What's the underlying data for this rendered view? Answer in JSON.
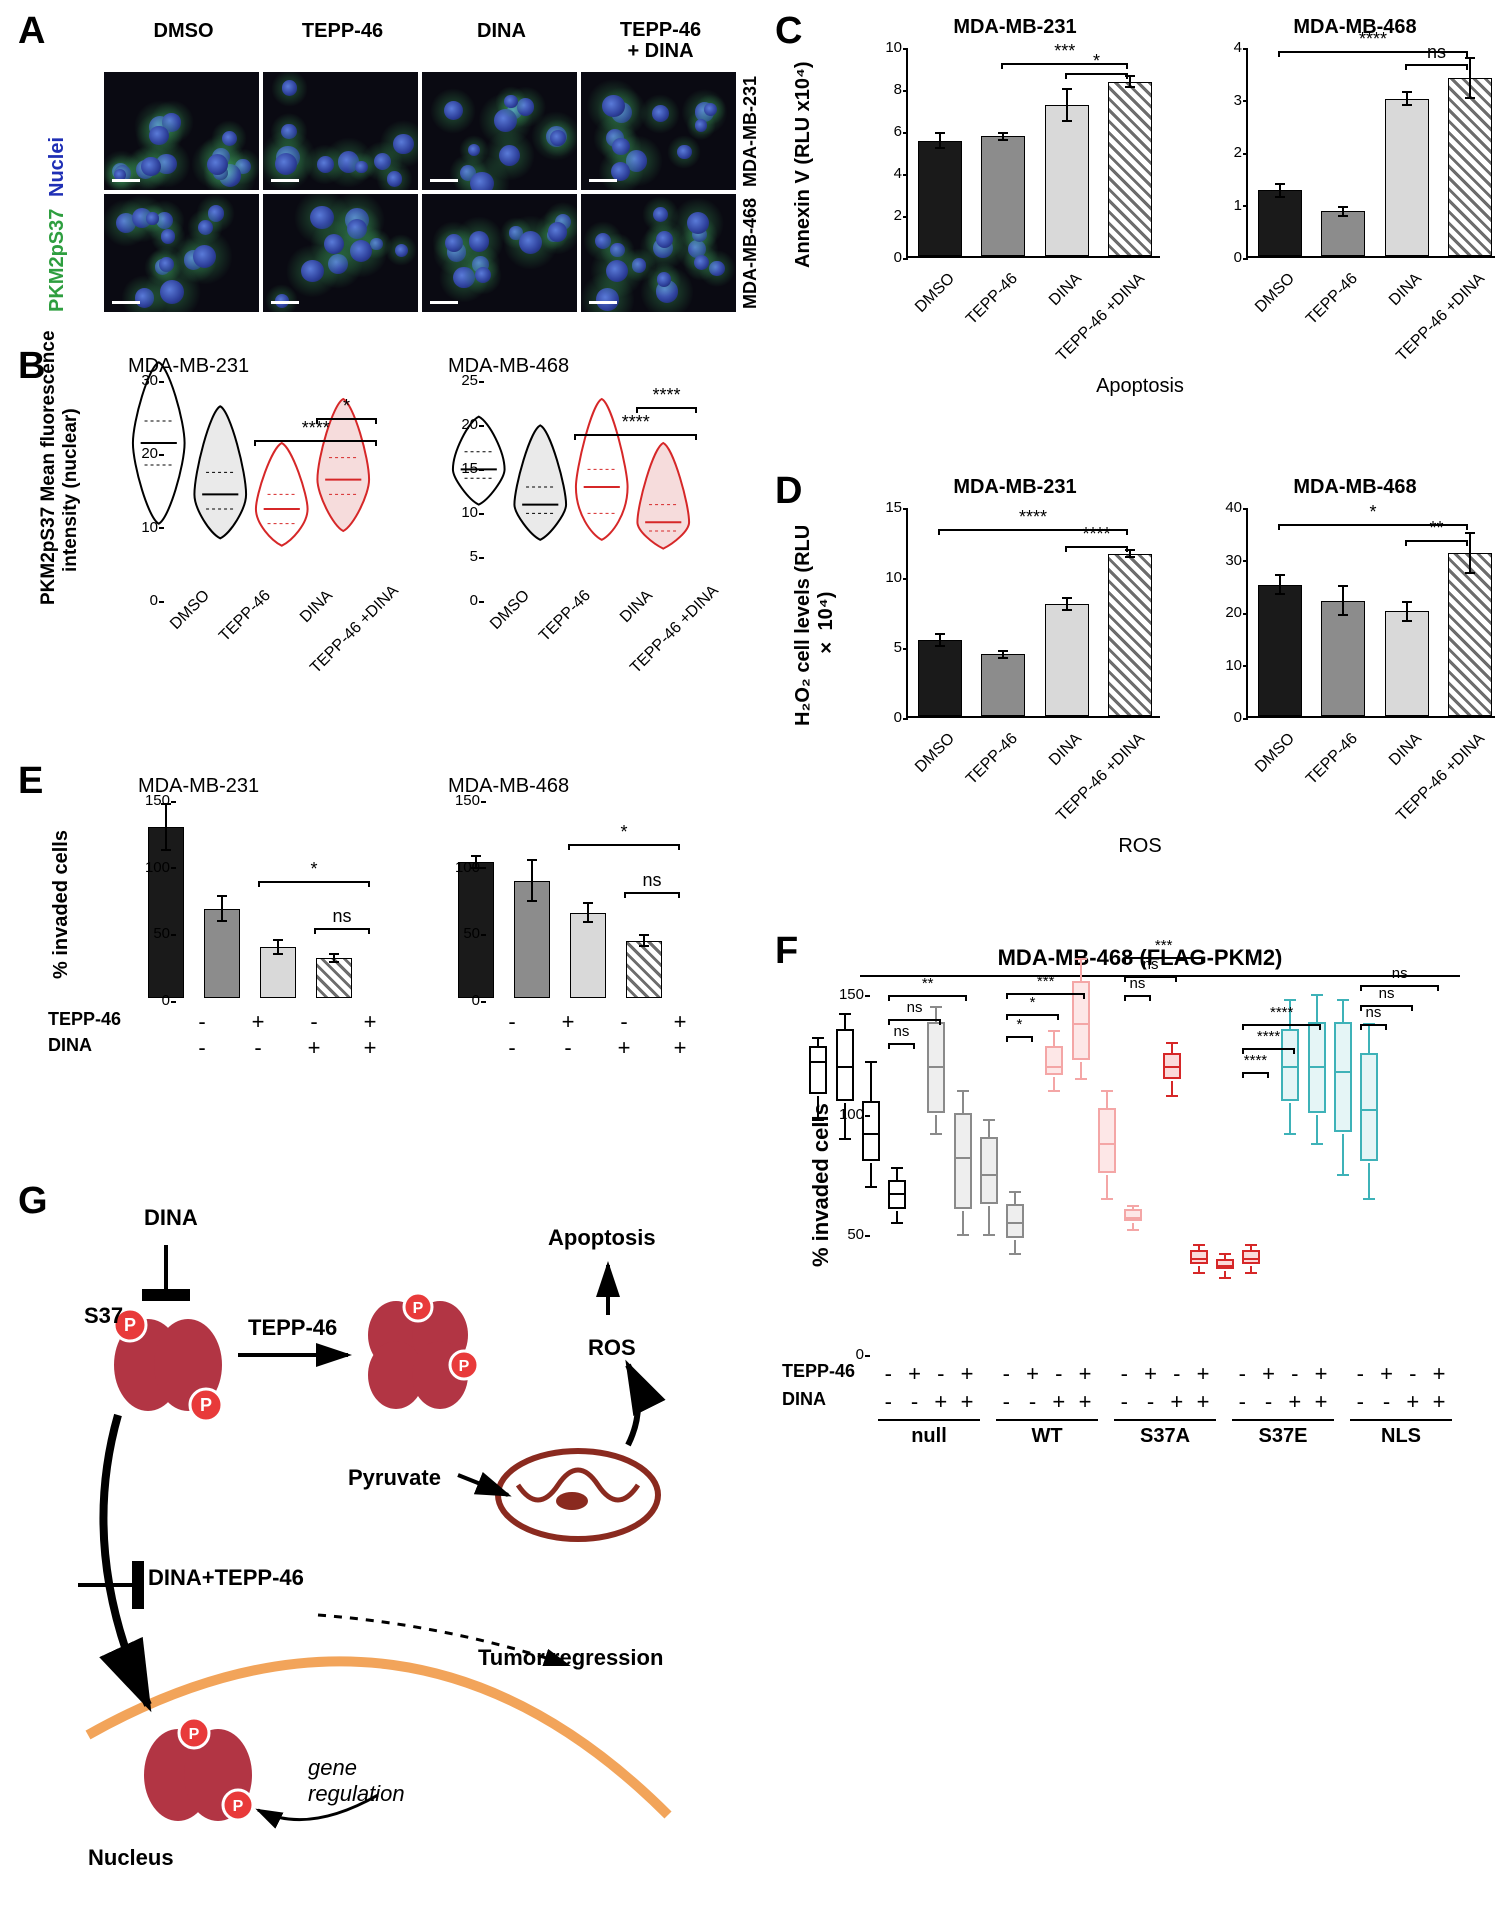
{
  "palette": {
    "bar_dmso": "#1a1a1a",
    "bar_tepp": "#8c8c8c",
    "bar_dina": "#d9d9d9",
    "bar_combo_fill": "#ffffff",
    "bar_combo_hatch": "#6d6d6d",
    "violin_ctrl": "#000000",
    "violin_ctrl_fill": "#eaeaea",
    "violin_trt": "#d62728",
    "box_null": "#000000",
    "box_wt": "#8a8a8a",
    "box_s37a": "#f4a6a6",
    "box_s37e": "#d62728",
    "box_nls": "#3eb2b8"
  },
  "panelA": {
    "col_headers": [
      "DMSO",
      "TEPP-46",
      "DINA",
      "TEPP-46\n+ DINA"
    ],
    "row_headers": [
      "MDA-MB-231",
      "MDA-MB-468"
    ],
    "legend": [
      "PKM2pS37",
      "Nuclei"
    ],
    "legend_colors": [
      "#2e9e3f",
      "#1f2fb5"
    ]
  },
  "panelB": {
    "ylabel": "PKM2pS37 Mean fluorescence\nintensity (nuclear)",
    "charts": [
      {
        "title": "MDA-MB-231",
        "ylim": [
          0,
          30
        ],
        "ytick_step": 10,
        "groups": [
          "DMSO",
          "TEPP-46",
          "DINA",
          "TEPP-46\n+DINA"
        ],
        "violins": [
          {
            "median": 18,
            "q1": 15,
            "q3": 21,
            "min": 7,
            "max": 29,
            "color": "violin_ctrl"
          },
          {
            "median": 11,
            "q1": 9,
            "q3": 14,
            "min": 5,
            "max": 23,
            "color": "violin_ctrl"
          },
          {
            "median": 9,
            "q1": 7,
            "q3": 11,
            "min": 4,
            "max": 18,
            "color": "violin_trt"
          },
          {
            "median": 13,
            "q1": 11,
            "q3": 16,
            "min": 6,
            "max": 24,
            "color": "violin_trt"
          }
        ],
        "sig": [
          {
            "from": 2,
            "to": 3,
            "label": "*",
            "y": 25
          },
          {
            "from": 1,
            "to": 3,
            "label": "****",
            "y": 22
          }
        ]
      },
      {
        "title": "MDA-MB-468",
        "ylim": [
          0,
          25
        ],
        "ytick_step": 5,
        "groups": [
          "DMSO",
          "TEPP-46",
          "DINA",
          "TEPP-46\n+DINA"
        ],
        "violins": [
          {
            "median": 12,
            "q1": 11,
            "q3": 14,
            "min": 8,
            "max": 18,
            "color": "violin_ctrl"
          },
          {
            "median": 8,
            "q1": 7,
            "q3": 10,
            "min": 4,
            "max": 17,
            "color": "violin_ctrl"
          },
          {
            "median": 10,
            "q1": 7,
            "q3": 12,
            "min": 4,
            "max": 20,
            "color": "violin_trt"
          },
          {
            "median": 6,
            "q1": 5,
            "q3": 8,
            "min": 3,
            "max": 15,
            "color": "violin_trt"
          }
        ],
        "sig": [
          {
            "from": 2,
            "to": 3,
            "label": "****",
            "y": 22
          },
          {
            "from": 1,
            "to": 3,
            "label": "****",
            "y": 19
          }
        ]
      }
    ]
  },
  "panelC": {
    "ylabel": "Annexin V (RLU x10⁴)",
    "footer": "Apoptosis",
    "charts": [
      {
        "title": "MDA-MB-231",
        "ylim": [
          0,
          10
        ],
        "ytick_step": 2,
        "groups": [
          "DMSO",
          "TEPP-46",
          "DINA",
          "TEPP-46\n+DINA"
        ],
        "bars": [
          {
            "v": 5.5,
            "e": 0.4
          },
          {
            "v": 5.7,
            "e": 0.2
          },
          {
            "v": 7.2,
            "e": 0.8
          },
          {
            "v": 8.3,
            "e": 0.3
          }
        ],
        "sig": [
          {
            "from": 1,
            "to": 3,
            "label": "***",
            "y": 9.3
          },
          {
            "from": 2,
            "to": 3,
            "label": "*",
            "y": 8.8
          }
        ]
      },
      {
        "title": "MDA-MB-468",
        "ylim": [
          0,
          4
        ],
        "ytick_step": 1,
        "groups": [
          "DMSO",
          "TEPP-46",
          "DINA",
          "TEPP-46\n+DINA"
        ],
        "bars": [
          {
            "v": 1.25,
            "e": 0.15
          },
          {
            "v": 0.85,
            "e": 0.1
          },
          {
            "v": 3.0,
            "e": 0.15
          },
          {
            "v": 3.4,
            "e": 0.4
          }
        ],
        "sig": [
          {
            "from": 0,
            "to": 3,
            "label": "****",
            "y": 3.95
          },
          {
            "from": 2,
            "to": 3,
            "label": "ns",
            "y": 3.7
          }
        ]
      }
    ]
  },
  "panelD": {
    "ylabel": "H₂O₂ cell levels  (RLU × 10⁴)",
    "footer": "ROS",
    "charts": [
      {
        "title": "MDA-MB-231",
        "ylim": [
          0,
          15
        ],
        "ytick_step": 5,
        "groups": [
          "DMSO",
          "TEPP-46",
          "DINA",
          "TEPP-46\n+DINA"
        ],
        "bars": [
          {
            "v": 5.4,
            "e": 0.5
          },
          {
            "v": 4.4,
            "e": 0.3
          },
          {
            "v": 8.0,
            "e": 0.5
          },
          {
            "v": 11.6,
            "e": 0.3
          }
        ],
        "sig": [
          {
            "from": 0,
            "to": 3,
            "label": "****",
            "y": 13.5
          },
          {
            "from": 2,
            "to": 3,
            "label": "****",
            "y": 12.3
          }
        ]
      },
      {
        "title": "MDA-MB-468",
        "ylim": [
          0,
          40
        ],
        "ytick_step": 10,
        "groups": [
          "DMSO",
          "TEPP-46",
          "DINA",
          "TEPP-46\n+DINA"
        ],
        "bars": [
          {
            "v": 25,
            "e": 2
          },
          {
            "v": 22,
            "e": 3
          },
          {
            "v": 20,
            "e": 2
          },
          {
            "v": 31,
            "e": 4
          }
        ],
        "sig": [
          {
            "from": 0,
            "to": 3,
            "label": "*",
            "y": 37
          },
          {
            "from": 2,
            "to": 3,
            "label": "**",
            "y": 34
          }
        ]
      }
    ]
  },
  "panelE": {
    "ylabel": "% invaded cells",
    "charts": [
      {
        "title": "MDA-MB-231",
        "ylim": [
          0,
          150
        ],
        "ytick_step": 50,
        "bars": [
          {
            "v": 128,
            "e": 18
          },
          {
            "v": 67,
            "e": 10
          },
          {
            "v": 38,
            "e": 6
          },
          {
            "v": 30,
            "e": 4
          }
        ],
        "sig": [
          {
            "from": 1,
            "to": 3,
            "label": "*",
            "y": 90
          },
          {
            "from": 2,
            "to": 3,
            "label": "ns",
            "y": 55
          }
        ]
      },
      {
        "title": "MDA-MB-468",
        "ylim": [
          0,
          150
        ],
        "ytick_step": 50,
        "bars": [
          {
            "v": 102,
            "e": 5
          },
          {
            "v": 88,
            "e": 16
          },
          {
            "v": 64,
            "e": 8
          },
          {
            "v": 43,
            "e": 5
          }
        ],
        "sig": [
          {
            "from": 1,
            "to": 3,
            "label": "*",
            "y": 118
          },
          {
            "from": 2,
            "to": 3,
            "label": "ns",
            "y": 82
          }
        ]
      }
    ],
    "trt_rows": [
      "TEPP-46",
      "DINA"
    ],
    "trt_matrix": [
      [
        "-",
        "+",
        "-",
        "+"
      ],
      [
        "-",
        "-",
        "+",
        "+"
      ]
    ]
  },
  "panelF": {
    "title": "MDA-MB-468 (FLAG-PKM2)",
    "ylabel": "% invaded cells",
    "ylim": [
      0,
      150
    ],
    "ytick_step": 50,
    "constructs": [
      "null",
      "WT",
      "S37A",
      "S37E",
      "NLS"
    ],
    "construct_colors": [
      "box_null",
      "box_wt",
      "box_s37a",
      "box_s37e",
      "box_nls"
    ],
    "trt_rows": [
      "TEPP-46",
      "DINA"
    ],
    "trt_matrix": [
      [
        "-",
        "+",
        "-",
        "+"
      ],
      [
        "-",
        "-",
        "+",
        "+"
      ]
    ],
    "boxes": [
      [
        {
          "min": 78,
          "q1": 88,
          "med": 102,
          "q3": 108,
          "max": 112
        },
        {
          "min": 70,
          "q1": 85,
          "med": 100,
          "q3": 115,
          "max": 122
        },
        {
          "min": 50,
          "q1": 60,
          "med": 72,
          "q3": 85,
          "max": 102
        },
        {
          "min": 35,
          "q1": 40,
          "med": 47,
          "q3": 52,
          "max": 58
        }
      ],
      [
        {
          "min": 72,
          "q1": 80,
          "med": 100,
          "q3": 118,
          "max": 125
        },
        {
          "min": 30,
          "q1": 40,
          "med": 62,
          "q3": 80,
          "max": 90
        },
        {
          "min": 30,
          "q1": 42,
          "med": 55,
          "q3": 70,
          "max": 78
        },
        {
          "min": 22,
          "q1": 28,
          "med": 35,
          "q3": 42,
          "max": 48
        }
      ],
      [
        {
          "min": 90,
          "q1": 96,
          "med": 100,
          "q3": 108,
          "max": 115
        },
        {
          "min": 95,
          "q1": 102,
          "med": 118,
          "q3": 135,
          "max": 145
        },
        {
          "min": 45,
          "q1": 55,
          "med": 68,
          "q3": 82,
          "max": 90
        },
        {
          "min": 32,
          "q1": 35,
          "med": 37,
          "q3": 40,
          "max": 42
        }
      ],
      [
        {
          "min": 88,
          "q1": 94,
          "med": 100,
          "q3": 105,
          "max": 110
        },
        {
          "min": 14,
          "q1": 17,
          "med": 20,
          "q3": 23,
          "max": 26
        },
        {
          "min": 12,
          "q1": 15,
          "med": 17,
          "q3": 19,
          "max": 22
        },
        {
          "min": 14,
          "q1": 17,
          "med": 20,
          "q3": 23,
          "max": 26
        }
      ],
      [
        {
          "min": 72,
          "q1": 85,
          "med": 100,
          "q3": 115,
          "max": 128
        },
        {
          "min": 68,
          "q1": 80,
          "med": 100,
          "q3": 118,
          "max": 130
        },
        {
          "min": 55,
          "q1": 72,
          "med": 98,
          "q3": 118,
          "max": 128
        },
        {
          "min": 45,
          "q1": 60,
          "med": 82,
          "q3": 105,
          "max": 118
        }
      ]
    ],
    "sig": [
      {
        "g": 0,
        "pair": [
          0,
          1
        ],
        "label": "ns",
        "y": 130
      },
      {
        "g": 0,
        "pair": [
          0,
          2
        ],
        "label": "ns",
        "y": 140
      },
      {
        "g": 0,
        "pair": [
          0,
          3
        ],
        "label": "**",
        "y": 150
      },
      {
        "g": 1,
        "pair": [
          0,
          1
        ],
        "label": "*",
        "y": 133
      },
      {
        "g": 1,
        "pair": [
          0,
          2
        ],
        "label": "*",
        "y": 142
      },
      {
        "g": 1,
        "pair": [
          0,
          3
        ],
        "label": "***",
        "y": 151
      },
      {
        "g": 2,
        "pair": [
          0,
          1
        ],
        "label": "ns",
        "y": 150
      },
      {
        "g": 2,
        "pair": [
          0,
          2
        ],
        "label": "ns",
        "y": 158
      },
      {
        "g": 2,
        "pair": [
          0,
          3
        ],
        "label": "***",
        "y": 166
      },
      {
        "g": 3,
        "pair": [
          0,
          1
        ],
        "label": "****",
        "y": 118
      },
      {
        "g": 3,
        "pair": [
          0,
          2
        ],
        "label": "****",
        "y": 128
      },
      {
        "g": 3,
        "pair": [
          0,
          3
        ],
        "label": "****",
        "y": 138
      },
      {
        "g": 4,
        "pair": [
          0,
          1
        ],
        "label": "ns",
        "y": 138
      },
      {
        "g": 4,
        "pair": [
          0,
          2
        ],
        "label": "ns",
        "y": 146
      },
      {
        "g": 4,
        "pair": [
          0,
          3
        ],
        "label": "ns",
        "y": 154
      }
    ]
  },
  "panelG": {
    "labels": {
      "dina": "DINA",
      "s37": "S37",
      "p": "P",
      "tepp": "TEPP-46",
      "apoptosis": "Apoptosis",
      "ros": "ROS",
      "pyruvate": "Pyruvate",
      "combo": "DINA+TEPP-46",
      "tumor": "Tumor regression",
      "nucleus": "Nucleus",
      "gene": "gene\nregulation"
    },
    "colors": {
      "pkm2": "#b23544",
      "phospho": "#e83a3a",
      "phospho_ring": "#fff",
      "mito": "#8a2a1f",
      "nuc_membrane": "#f2a45a"
    }
  }
}
